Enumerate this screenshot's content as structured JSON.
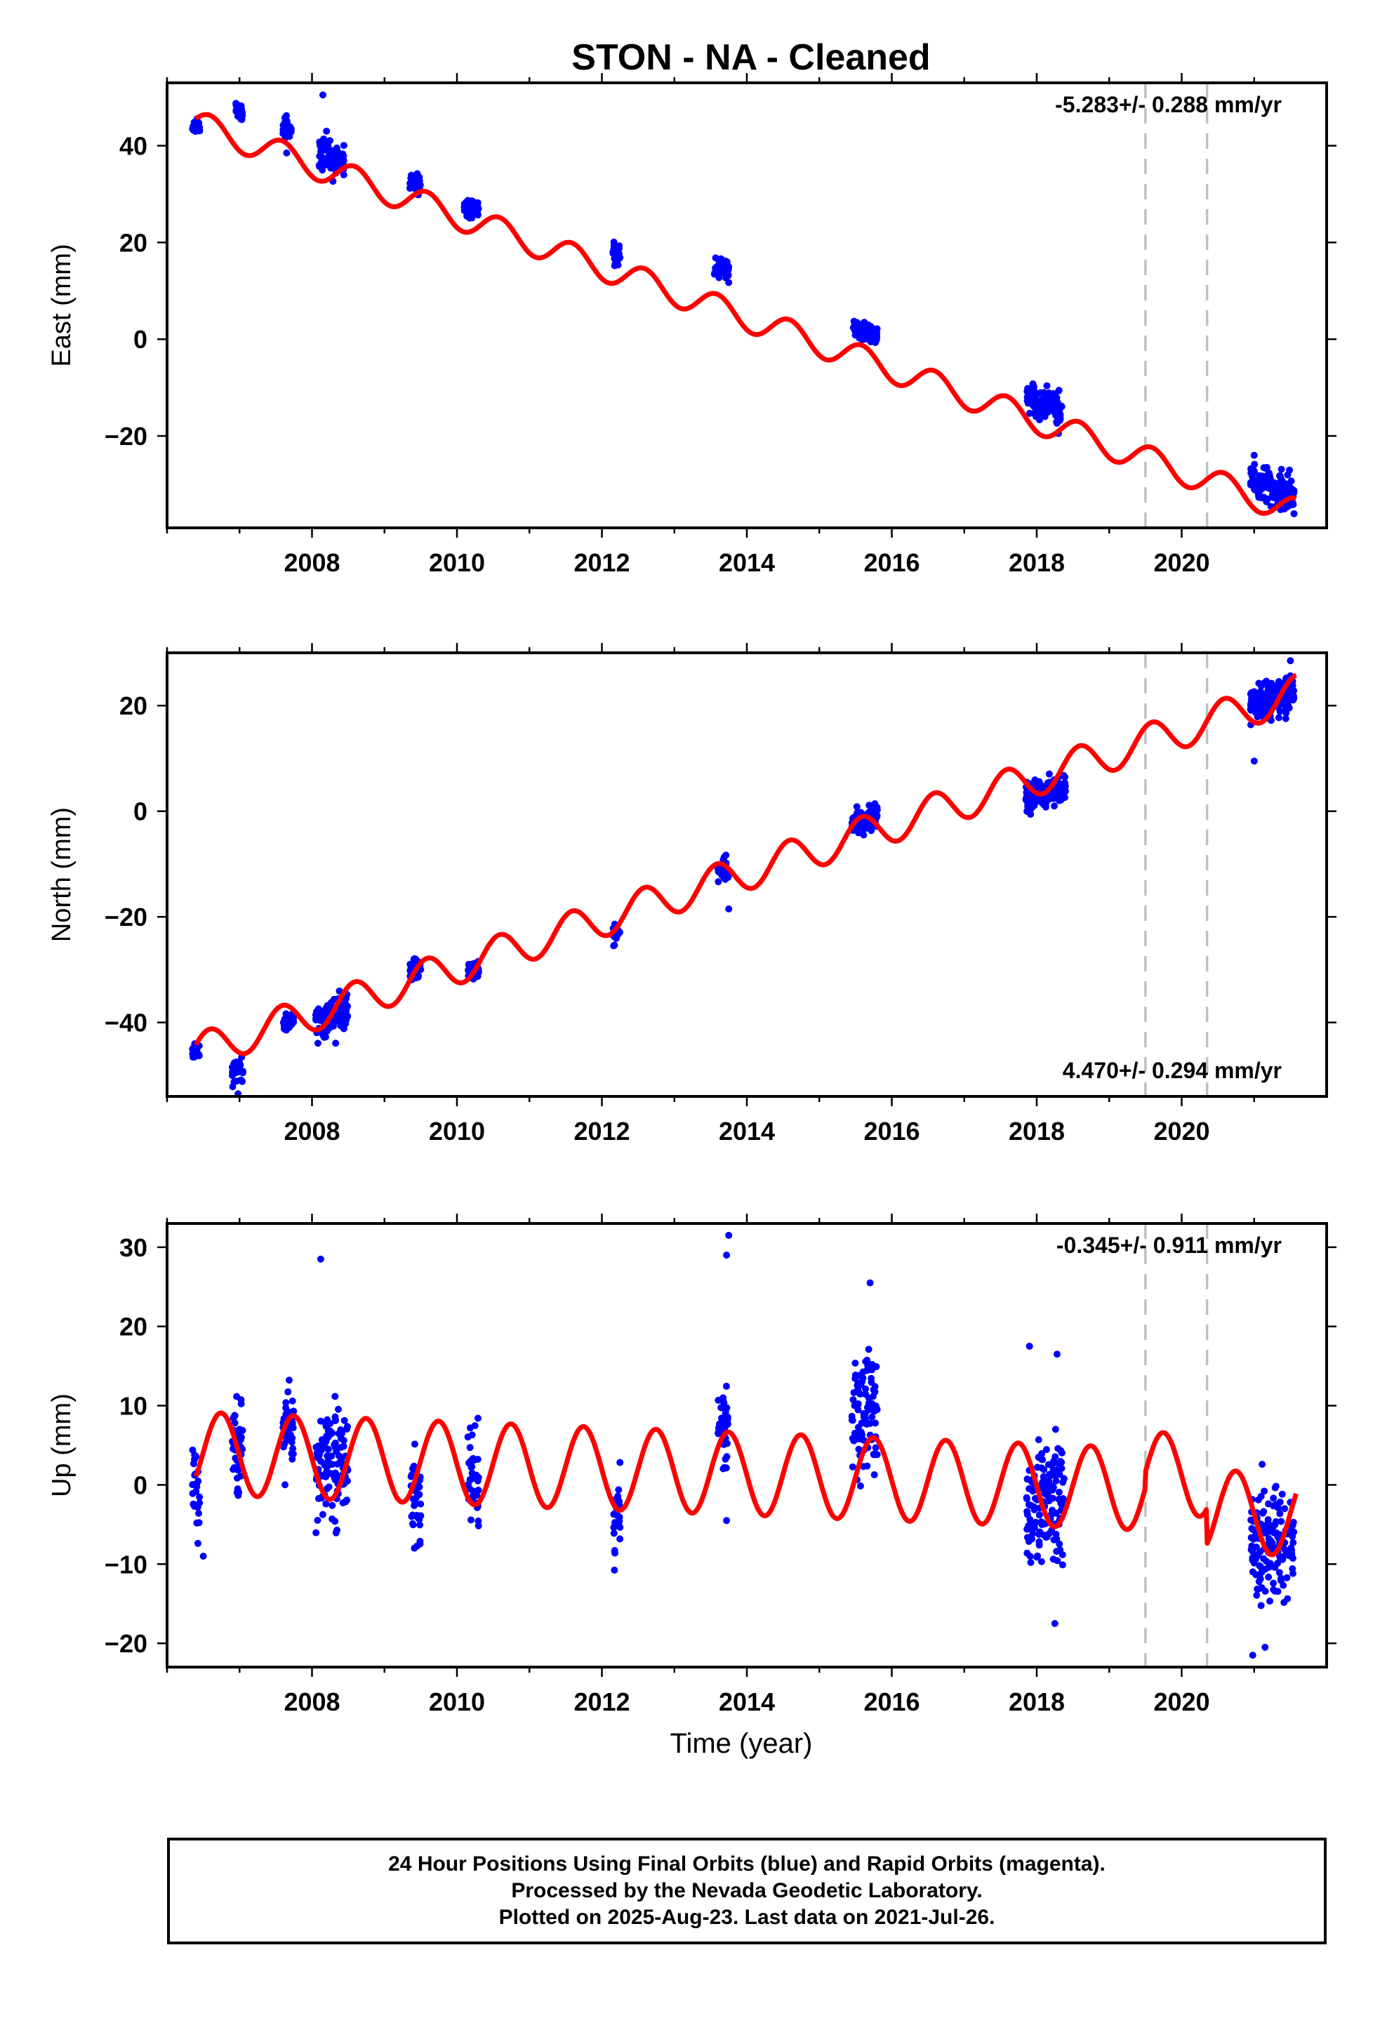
{
  "title": "STON  - NA - Cleaned",
  "colors": {
    "data": "#0000ff",
    "model": "#ff0000",
    "offset_line": "#c0c0c0",
    "frame": "#000000"
  },
  "caption": {
    "line1": "24 Hour Positions Using Final Orbits (blue) and Rapid Orbits (magenta).",
    "line2": "Processed by the Nevada Geodetic Laboratory.",
    "line3": "Plotted on 2025-Aug-23. Last data on 2021-Jul-26."
  },
  "chart_data": [
    {
      "type": "scatter",
      "ylabel": "East (mm)",
      "xlabel": "",
      "rate_label": "-5.283+/- 0.288 mm/yr",
      "rate_position": "top-right",
      "xlim": [
        2006.0,
        2022.0
      ],
      "ylim": [
        -39,
        53
      ],
      "xticks": [
        2008,
        2010,
        2012,
        2014,
        2016,
        2018,
        2020
      ],
      "yticks": [
        -20,
        0,
        20,
        40
      ],
      "ytick_labels": [
        "−20",
        "0",
        "20",
        "40"
      ],
      "offset_lines": [
        2019.5,
        2020.35
      ],
      "trend": {
        "rate": -5.283,
        "value_at_2006_4": 44.5
      },
      "seasonal_amplitude": 2.8,
      "model_breaks": [
        {
          "x": 2020.35,
          "jump": 0
        }
      ],
      "series": [
        {
          "values_note_excluded": false,
          "clusters": [
            [
              2006.35,
              2006.45,
              44.0,
              1.5
            ],
            [
              2006.95,
              2007.05,
              47.0,
              1.2
            ],
            [
              2007.6,
              2007.72,
              43.5,
              1.6
            ],
            [
              2008.1,
              2008.45,
              37.5,
              2.2
            ],
            [
              2009.35,
              2009.5,
              32.5,
              1.4
            ],
            [
              2010.1,
              2010.3,
              27.0,
              1.5
            ],
            [
              2012.15,
              2012.25,
              18.0,
              2.2
            ],
            [
              2013.55,
              2013.75,
              14.5,
              1.8
            ],
            [
              2015.45,
              2015.8,
              1.5,
              1.2
            ],
            [
              2017.85,
              2018.35,
              -13.0,
              2.2
            ],
            [
              2020.95,
              2021.55,
              -30.5,
              2.5
            ]
          ],
          "outliers": [
            [
              2008.15,
              50.5
            ],
            [
              2007.65,
              38.5
            ],
            [
              2008.2,
              43.0
            ],
            [
              2018.3,
              -19.5
            ],
            [
              2021.0,
              -24.0
            ]
          ]
        }
      ]
    },
    {
      "type": "scatter",
      "ylabel": "North (mm)",
      "xlabel": "",
      "rate_label": "4.470+/- 0.294 mm/yr",
      "rate_position": "bottom-right",
      "xlim": [
        2006.0,
        2022.0
      ],
      "ylim": [
        -54,
        30
      ],
      "xticks": [
        2008,
        2010,
        2012,
        2014,
        2016,
        2018,
        2020
      ],
      "yticks": [
        -40,
        -20,
        0,
        20
      ],
      "ytick_labels": [
        "−40",
        "−20",
        "0",
        "20"
      ],
      "offset_lines": [
        2019.5,
        2020.35
      ],
      "trend": {
        "rate": 4.47,
        "value_at_2006_4": -45.5
      },
      "seasonal_amplitude": 3.4,
      "model_breaks": [
        {
          "x": 2020.35,
          "jump": 0
        }
      ],
      "series": [
        {
          "clusters": [
            [
              2006.35,
              2006.45,
              -45.5,
              1.2
            ],
            [
              2006.9,
              2007.05,
              -49.0,
              1.8
            ],
            [
              2007.6,
              2007.75,
              -39.5,
              1.0
            ],
            [
              2008.05,
              2008.5,
              -38.5,
              2.5
            ],
            [
              2009.35,
              2009.5,
              -29.5,
              1.5
            ],
            [
              2010.15,
              2010.3,
              -30.0,
              1.2
            ],
            [
              2012.15,
              2012.25,
              -23.0,
              1.2
            ],
            [
              2013.6,
              2013.75,
              -11.5,
              1.8
            ],
            [
              2015.45,
              2015.8,
              -1.5,
              1.6
            ],
            [
              2017.85,
              2018.4,
              3.5,
              2.0
            ],
            [
              2020.95,
              2021.55,
              21.5,
              2.6
            ]
          ],
          "outliers": [
            [
              2006.98,
              -53.5
            ],
            [
              2021.0,
              9.5
            ],
            [
              2013.75,
              -18.5
            ],
            [
              2021.5,
              28.5
            ]
          ]
        }
      ]
    },
    {
      "type": "scatter",
      "ylabel": "Up (mm)",
      "xlabel": "Time (year)",
      "rate_label": "-0.345+/- 0.911 mm/yr",
      "rate_position": "top-right",
      "xlim": [
        2006.0,
        2022.0
      ],
      "ylim": [
        -23,
        33
      ],
      "xticks": [
        2008,
        2010,
        2012,
        2014,
        2016,
        2018,
        2020
      ],
      "yticks": [
        -20,
        -10,
        0,
        10,
        20,
        30
      ],
      "ytick_labels": [
        "−20",
        "−10",
        "0",
        "10",
        "20",
        "30"
      ],
      "offset_lines": [
        2019.5,
        2020.35
      ],
      "trend": {
        "rate": -0.345,
        "value_at_2006_4": 4.0
      },
      "seasonal_amplitude": 5.2,
      "model_breaks": [
        {
          "x": 2019.5,
          "jump": 2.0
        },
        {
          "x": 2020.35,
          "jump": -4.5
        }
      ],
      "series": [
        {
          "clusters": [
            [
              2006.35,
              2006.45,
              -1.0,
              4.5
            ],
            [
              2006.9,
              2007.05,
              5.0,
              4.0
            ],
            [
              2007.6,
              2007.75,
              7.0,
              4.5
            ],
            [
              2008.05,
              2008.5,
              3.0,
              5.0
            ],
            [
              2009.35,
              2009.5,
              -1.0,
              4.5
            ],
            [
              2010.15,
              2010.3,
              1.0,
              4.0
            ],
            [
              2012.15,
              2012.25,
              -4.0,
              4.0
            ],
            [
              2013.6,
              2013.75,
              7.5,
              3.5
            ],
            [
              2015.45,
              2015.8,
              9.0,
              5.5
            ],
            [
              2017.85,
              2018.4,
              -2.0,
              5.0
            ],
            [
              2020.95,
              2021.55,
              -7.5,
              5.0
            ]
          ],
          "outliers": [
            [
              2008.12,
              28.5
            ],
            [
              2013.75,
              31.5
            ],
            [
              2013.72,
              29.0
            ],
            [
              2013.72,
              -4.5
            ],
            [
              2017.9,
              17.5
            ],
            [
              2018.28,
              16.5
            ],
            [
              2018.25,
              -17.5
            ],
            [
              2020.98,
              -21.5
            ],
            [
              2021.15,
              -20.5
            ],
            [
              2015.7,
              25.5
            ],
            [
              2006.5,
              -9.0
            ]
          ]
        }
      ]
    }
  ]
}
